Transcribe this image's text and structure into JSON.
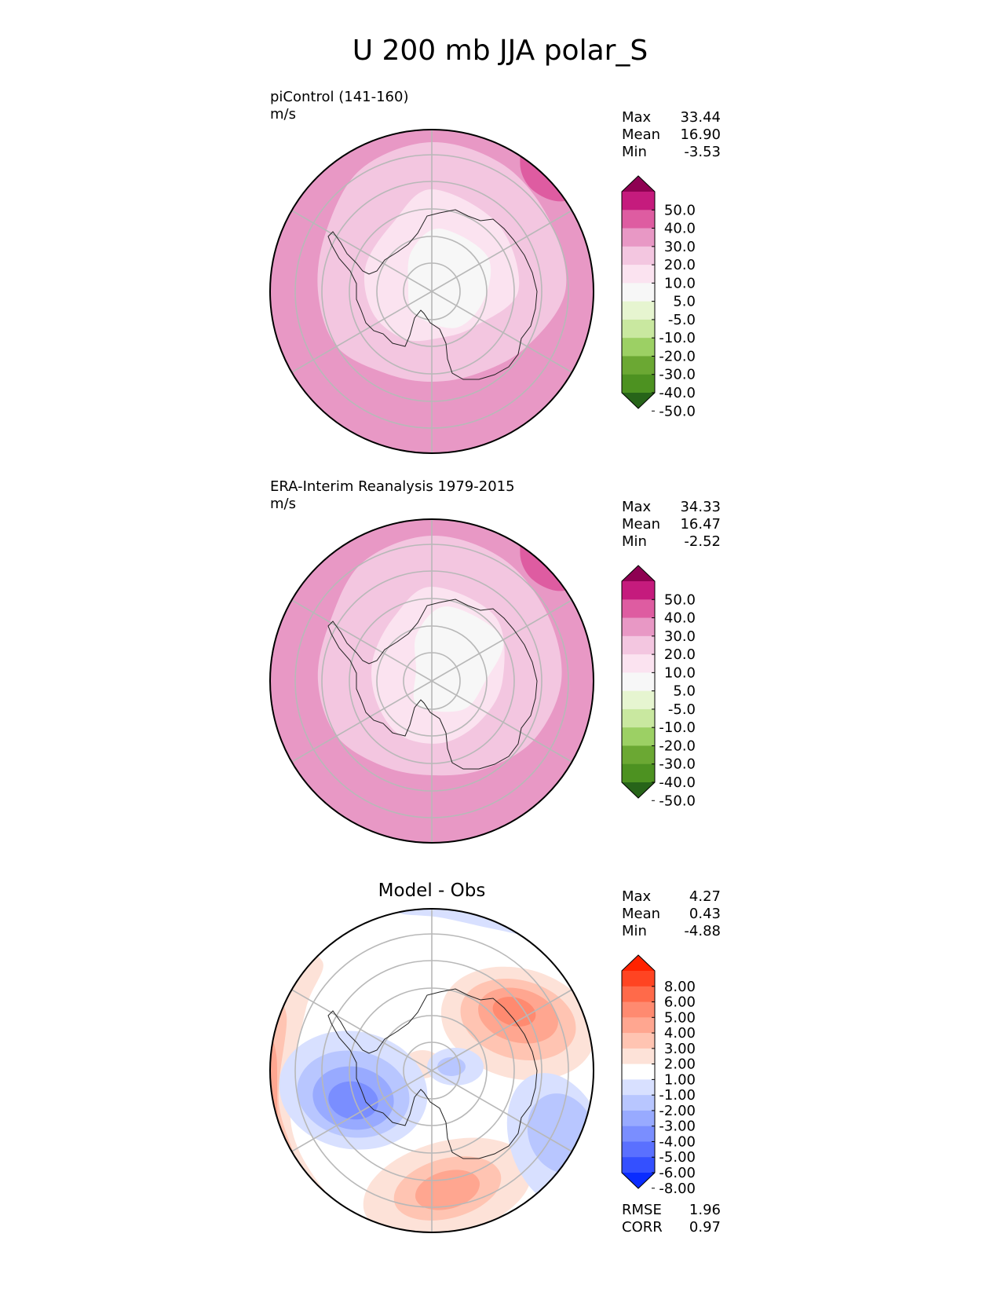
{
  "page": {
    "title": "U 200 mb JJA polar_S"
  },
  "chart_data": [
    {
      "type": "heatmap",
      "projection": "south-polar",
      "title": "piControl (141-160)",
      "units": "m/s",
      "stats": {
        "labels": [
          "Max",
          "Mean",
          "Min"
        ],
        "values": [
          "33.44",
          "16.90",
          "-3.53"
        ]
      },
      "colorbar": {
        "ticks": [
          "50.0",
          "40.0",
          "30.0",
          "20.0",
          "10.0",
          "5.0",
          "-5.0",
          "-10.0",
          "-20.0",
          "-30.0",
          "-40.0",
          "-50.0"
        ],
        "colors": [
          "#8e0152",
          "#c51b7d",
          "#de5ca1",
          "#e898c5",
          "#f3c6e0",
          "#fbe3f0",
          "#f7f7f7",
          "#e6f5d0",
          "#c9e8a0",
          "#9cd064",
          "#6ba833",
          "#4d9221",
          "#276419"
        ],
        "extend": "both"
      }
    },
    {
      "type": "heatmap",
      "projection": "south-polar",
      "title": "ERA-Interim Reanalysis 1979-2015",
      "units": "m/s",
      "stats": {
        "labels": [
          "Max",
          "Mean",
          "Min"
        ],
        "values": [
          "34.33",
          "16.47",
          "-2.52"
        ]
      },
      "colorbar": {
        "ticks": [
          "50.0",
          "40.0",
          "30.0",
          "20.0",
          "10.0",
          "5.0",
          "-5.0",
          "-10.0",
          "-20.0",
          "-30.0",
          "-40.0",
          "-50.0"
        ],
        "colors": [
          "#8e0152",
          "#c51b7d",
          "#de5ca1",
          "#e898c5",
          "#f3c6e0",
          "#fbe3f0",
          "#f7f7f7",
          "#e6f5d0",
          "#c9e8a0",
          "#9cd064",
          "#6ba833",
          "#4d9221",
          "#276419"
        ],
        "extend": "both"
      }
    },
    {
      "type": "heatmap",
      "projection": "south-polar",
      "title": "Model - Obs",
      "units": "",
      "stats": {
        "labels": [
          "Max",
          "Mean",
          "Min"
        ],
        "values": [
          "4.27",
          "0.43",
          "-4.88"
        ]
      },
      "metrics": {
        "labels": [
          "RMSE",
          "CORR"
        ],
        "values": [
          "1.96",
          "0.97"
        ]
      },
      "colorbar": {
        "ticks": [
          "8.00",
          "6.00",
          "5.00",
          "4.00",
          "3.00",
          "2.00",
          "1.00",
          "-1.00",
          "-2.00",
          "-3.00",
          "-4.00",
          "-5.00",
          "-6.00",
          "-8.00"
        ],
        "colors": [
          "#ff2200",
          "#ff4422",
          "#ff6a4a",
          "#ff8a70",
          "#ffa690",
          "#ffc4b2",
          "#fde2d8",
          "#ffffff",
          "#d8e0ff",
          "#b8c6ff",
          "#98aaff",
          "#7a8eff",
          "#5a70ff",
          "#3450ff",
          "#0a2cff"
        ],
        "extend": "both"
      }
    }
  ]
}
